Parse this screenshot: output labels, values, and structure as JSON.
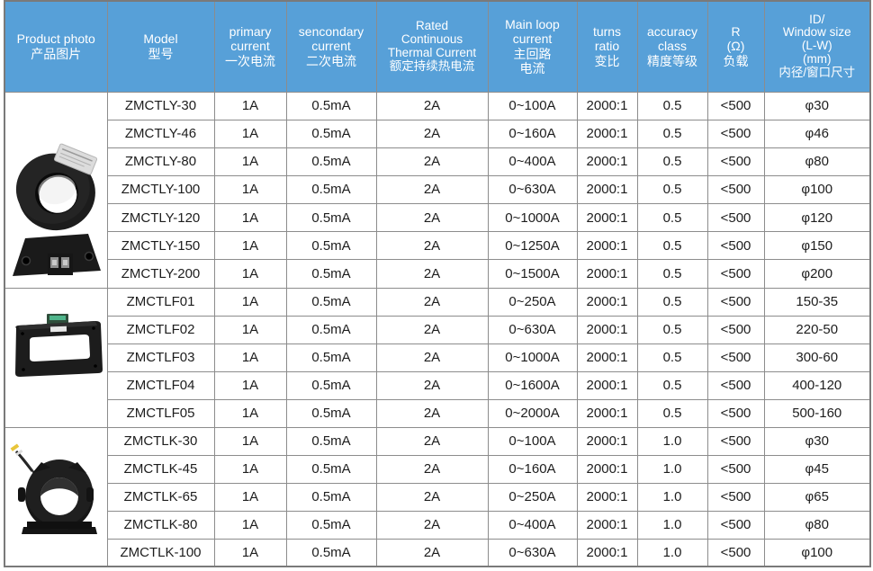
{
  "colors": {
    "header_bg": "#57a0d8",
    "header_text": "#ffffff",
    "grid_border": "#8c8c8c",
    "body_text": "#1d1d1d"
  },
  "table": {
    "columns": [
      {
        "key": "product-photo",
        "lines": [
          "Product photo",
          "产品图片"
        ]
      },
      {
        "key": "model",
        "lines": [
          "Model",
          "型号"
        ]
      },
      {
        "key": "primary-current",
        "lines": [
          "primary",
          "current",
          "一次电流"
        ]
      },
      {
        "key": "secondary-current",
        "lines": [
          "sencondary",
          "current",
          "二次电流"
        ]
      },
      {
        "key": "rated-thermal",
        "lines": [
          "Rated",
          "Continuous",
          "Thermal Current",
          "额定持续热电流"
        ],
        "tight": true
      },
      {
        "key": "main-loop-current",
        "lines": [
          "Main loop",
          "current",
          "主回路",
          "电流"
        ]
      },
      {
        "key": "turns-ratio",
        "lines": [
          "turns",
          "ratio",
          "变比"
        ]
      },
      {
        "key": "accuracy-class",
        "lines": [
          "accuracy",
          "class",
          "精度等级"
        ]
      },
      {
        "key": "r-load",
        "lines": [
          "R",
          "(Ω)",
          "负载"
        ]
      },
      {
        "key": "window-size",
        "lines": [
          "ID/",
          "Window size",
          "(L-W)",
          "(mm)",
          "内径/窗口尺寸"
        ],
        "tight": true
      }
    ],
    "groups": [
      {
        "photo": "toroidal-base-ct",
        "rows": [
          {
            "model": "ZMCTLY-30",
            "primary": "1A",
            "secondary": "0.5mA",
            "thermal": "2A",
            "main_loop": "0~100A",
            "ratio": "2000:1",
            "accuracy": "0.5",
            "r": "<500",
            "window": "φ30"
          },
          {
            "model": "ZMCTLY-46",
            "primary": "1A",
            "secondary": "0.5mA",
            "thermal": "2A",
            "main_loop": "0~160A",
            "ratio": "2000:1",
            "accuracy": "0.5",
            "r": "<500",
            "window": "φ46"
          },
          {
            "model": "ZMCTLY-80",
            "primary": "1A",
            "secondary": "0.5mA",
            "thermal": "2A",
            "main_loop": "0~400A",
            "ratio": "2000:1",
            "accuracy": "0.5",
            "r": "<500",
            "window": "φ80"
          },
          {
            "model": "ZMCTLY-100",
            "primary": "1A",
            "secondary": "0.5mA",
            "thermal": "2A",
            "main_loop": "0~630A",
            "ratio": "2000:1",
            "accuracy": "0.5",
            "r": "<500",
            "window": "φ100"
          },
          {
            "model": "ZMCTLY-120",
            "primary": "1A",
            "secondary": "0.5mA",
            "thermal": "2A",
            "main_loop": "0~1000A",
            "ratio": "2000:1",
            "accuracy": "0.5",
            "r": "<500",
            "window": "φ120"
          },
          {
            "model": "ZMCTLY-150",
            "primary": "1A",
            "secondary": "0.5mA",
            "thermal": "2A",
            "main_loop": "0~1250A",
            "ratio": "2000:1",
            "accuracy": "0.5",
            "r": "<500",
            "window": "φ150"
          },
          {
            "model": "ZMCTLY-200",
            "primary": "1A",
            "secondary": "0.5mA",
            "thermal": "2A",
            "main_loop": "0~1500A",
            "ratio": "2000:1",
            "accuracy": "0.5",
            "r": "<500",
            "window": "φ200"
          }
        ]
      },
      {
        "photo": "rectangular-frame-ct",
        "rows": [
          {
            "model": "ZMCTLF01",
            "primary": "1A",
            "secondary": "0.5mA",
            "thermal": "2A",
            "main_loop": "0~250A",
            "ratio": "2000:1",
            "accuracy": "0.5",
            "r": "<500",
            "window": "150-35"
          },
          {
            "model": "ZMCTLF02",
            "primary": "1A",
            "secondary": "0.5mA",
            "thermal": "2A",
            "main_loop": "0~630A",
            "ratio": "2000:1",
            "accuracy": "0.5",
            "r": "<500",
            "window": "220-50"
          },
          {
            "model": "ZMCTLF03",
            "primary": "1A",
            "secondary": "0.5mA",
            "thermal": "2A",
            "main_loop": "0~1000A",
            "ratio": "2000:1",
            "accuracy": "0.5",
            "r": "<500",
            "window": "300-60"
          },
          {
            "model": "ZMCTLF04",
            "primary": "1A",
            "secondary": "0.5mA",
            "thermal": "2A",
            "main_loop": "0~1600A",
            "ratio": "2000:1",
            "accuracy": "0.5",
            "r": "<500",
            "window": "400-120"
          },
          {
            "model": "ZMCTLF05",
            "primary": "1A",
            "secondary": "0.5mA",
            "thermal": "2A",
            "main_loop": "0~2000A",
            "ratio": "2000:1",
            "accuracy": "0.5",
            "r": "<500",
            "window": "500-160"
          }
        ]
      },
      {
        "photo": "round-flange-ct",
        "rows": [
          {
            "model": "ZMCTLK-30",
            "primary": "1A",
            "secondary": "0.5mA",
            "thermal": "2A",
            "main_loop": "0~100A",
            "ratio": "2000:1",
            "accuracy": "1.0",
            "r": "<500",
            "window": "φ30"
          },
          {
            "model": "ZMCTLK-45",
            "primary": "1A",
            "secondary": "0.5mA",
            "thermal": "2A",
            "main_loop": "0~160A",
            "ratio": "2000:1",
            "accuracy": "1.0",
            "r": "<500",
            "window": "φ45"
          },
          {
            "model": "ZMCTLK-65",
            "primary": "1A",
            "secondary": "0.5mA",
            "thermal": "2A",
            "main_loop": "0~250A",
            "ratio": "2000:1",
            "accuracy": "1.0",
            "r": "<500",
            "window": "φ65"
          },
          {
            "model": "ZMCTLK-80",
            "primary": "1A",
            "secondary": "0.5mA",
            "thermal": "2A",
            "main_loop": "0~400A",
            "ratio": "2000:1",
            "accuracy": "1.0",
            "r": "<500",
            "window": "φ80"
          },
          {
            "model": "ZMCTLK-100",
            "primary": "1A",
            "secondary": "0.5mA",
            "thermal": "2A",
            "main_loop": "0~630A",
            "ratio": "2000:1",
            "accuracy": "1.0",
            "r": "<500",
            "window": "φ100"
          }
        ]
      }
    ]
  }
}
